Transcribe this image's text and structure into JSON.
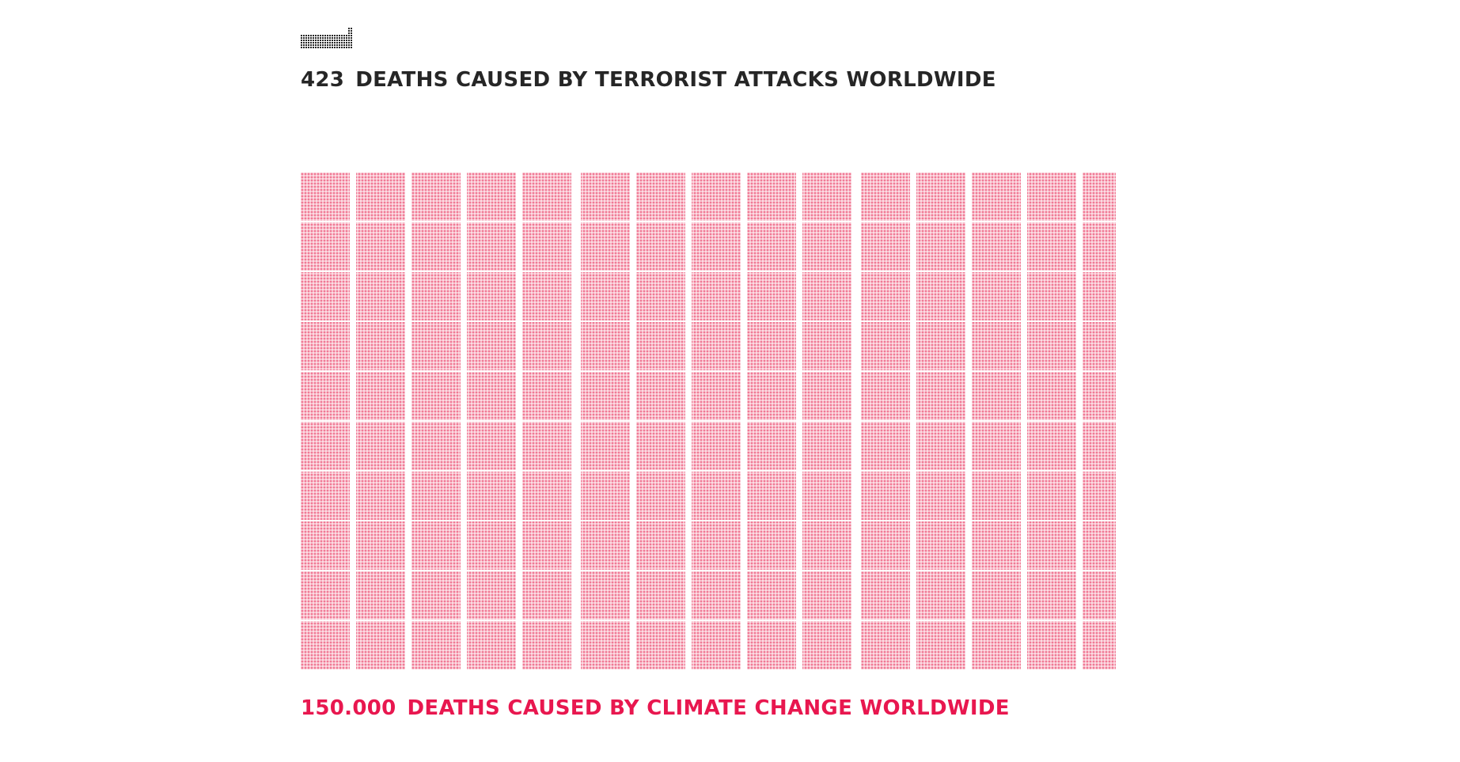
{
  "chart_data": {
    "type": "pictogram",
    "unit": "1 dot = 1 death",
    "series": [
      {
        "name": "DEATHS CAUSED BY TERRORIST ATTACKS WORLDWIDE",
        "count_label": "423",
        "value": 423,
        "color": "#262626"
      },
      {
        "name": "DEATHS CAUSED BY CLIMATE CHANGE WORLDWIDE",
        "count_label": "150.000",
        "value": 150000,
        "color": "#e8174f"
      }
    ]
  }
}
